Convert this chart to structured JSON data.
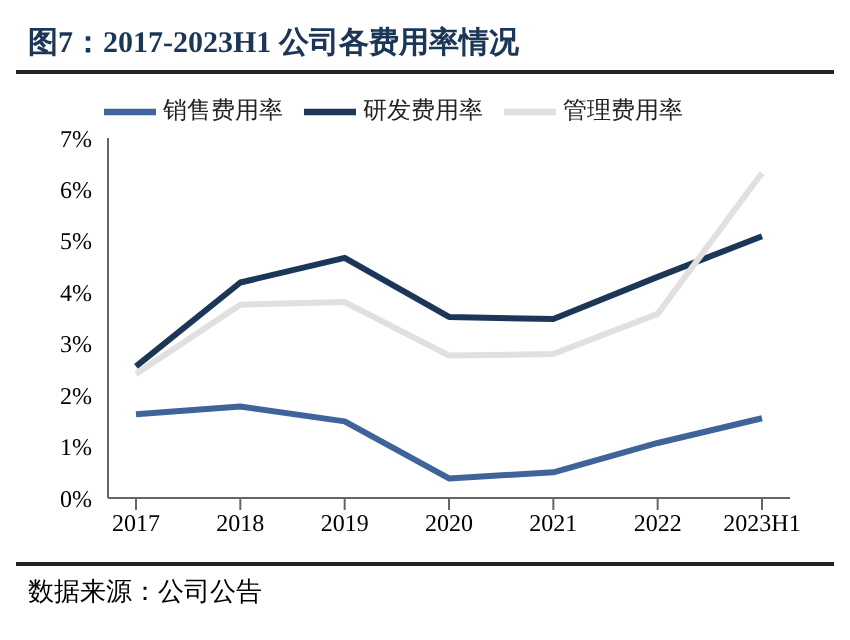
{
  "chart_data": {
    "type": "line",
    "title": "图7：2017-2023H1 公司各费用率情况",
    "categories": [
      "2017",
      "2018",
      "2019",
      "2020",
      "2021",
      "2022",
      "2023H1"
    ],
    "series": [
      {
        "name": "销售费用率",
        "color": "#3e6499",
        "values": [
          1.63,
          1.78,
          1.49,
          0.38,
          0.5,
          1.07,
          1.55
        ]
      },
      {
        "name": "研发费用率",
        "color": "#1b3657",
        "values": [
          2.56,
          4.19,
          4.67,
          3.52,
          3.48,
          4.3,
          5.09
        ]
      },
      {
        "name": "管理费用率",
        "color": "#e0e0e0",
        "values": [
          2.41,
          3.76,
          3.81,
          2.77,
          2.8,
          3.58,
          6.32
        ]
      }
    ],
    "ylim": [
      0,
      7
    ],
    "yticks": [
      {
        "value": 0,
        "label": "0%"
      },
      {
        "value": 1,
        "label": "1%"
      },
      {
        "value": 2,
        "label": "2%"
      },
      {
        "value": 3,
        "label": "3%"
      },
      {
        "value": 4,
        "label": "4%"
      },
      {
        "value": 5,
        "label": "5%"
      },
      {
        "value": 6,
        "label": "6%"
      },
      {
        "value": 7,
        "label": "7%"
      }
    ],
    "grid": false,
    "legend": "top",
    "marker": "none",
    "line_style": "solid",
    "annotations": [
      "数据来源：公司公告"
    ]
  }
}
